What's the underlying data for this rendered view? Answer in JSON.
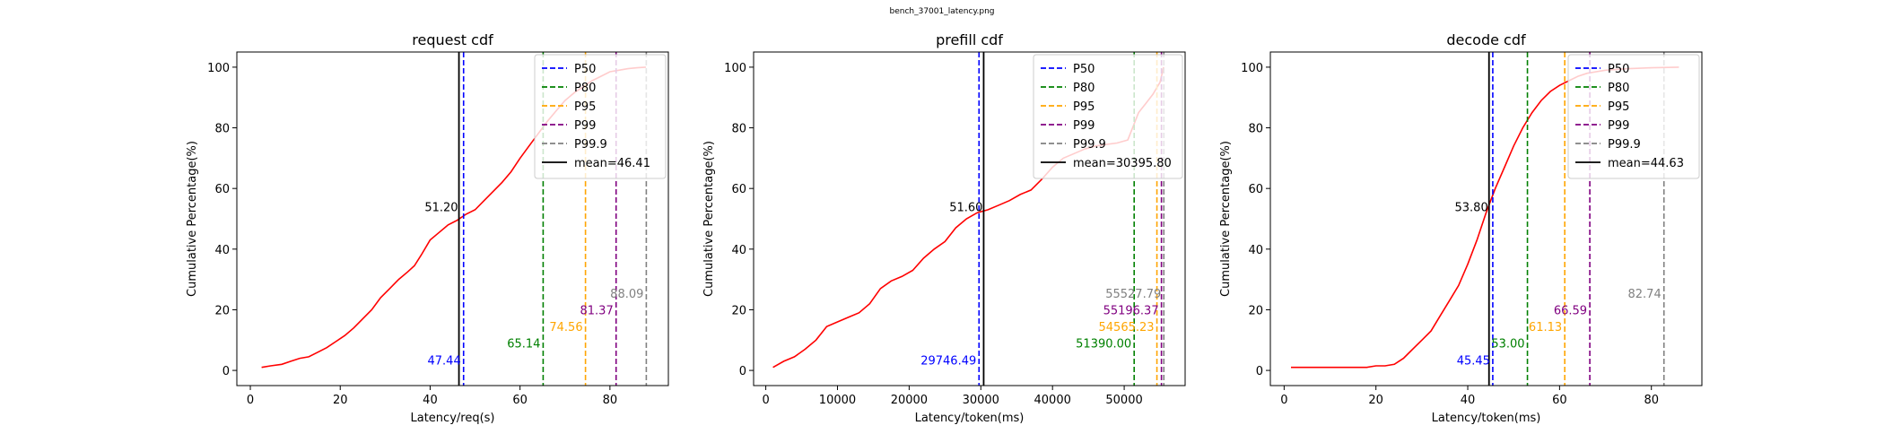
{
  "figure": {
    "suptitle": "bench_37001_latency.png"
  },
  "styles": {
    "cdf_color": "#ff0000",
    "mean_color": "#000000",
    "percentile_colors": {
      "P50": "#0000ff",
      "P80": "#008000",
      "P95": "#ffa500",
      "P99": "#800080",
      "P99.9": "#808080"
    }
  },
  "chart_data": [
    {
      "type": "line",
      "title": "request cdf",
      "xlabel": "Latency/req(s)",
      "ylabel": "Cumulative Percentage(%)",
      "xlim": [
        -3,
        93
      ],
      "ylim": [
        -5,
        105
      ],
      "xticks": [
        0,
        20,
        40,
        60,
        80
      ],
      "yticks": [
        0,
        20,
        40,
        60,
        80,
        100
      ],
      "x": [
        2.5,
        4.5,
        7,
        9,
        11,
        13,
        15,
        17,
        19,
        21,
        23,
        25,
        27,
        29,
        31,
        33,
        35,
        36.5,
        38,
        40,
        42,
        44,
        46,
        48,
        50,
        52,
        54,
        56,
        58,
        60,
        62,
        64,
        66,
        68,
        70,
        72,
        74,
        76,
        78,
        80,
        82,
        84,
        86,
        88
      ],
      "y": [
        1,
        1.5,
        2,
        3,
        4,
        4.5,
        6,
        7.5,
        9.5,
        11.5,
        14,
        17,
        20,
        24,
        27,
        30,
        32.5,
        34.5,
        38,
        43,
        45.5,
        48,
        49.5,
        51.5,
        53,
        56,
        59,
        62,
        65.5,
        70,
        74,
        78,
        82,
        85.5,
        89,
        91.5,
        93.5,
        95.5,
        97,
        98.5,
        99,
        99.5,
        99.8,
        100
      ],
      "mean": {
        "label": "mean=46.41",
        "value": 46.41
      },
      "mean_annotation": "51.20",
      "percentiles": [
        {
          "name": "P50",
          "value": 47.44,
          "label": "47.44"
        },
        {
          "name": "P80",
          "value": 65.14,
          "label": "65.14"
        },
        {
          "name": "P95",
          "value": 74.56,
          "label": "74.56"
        },
        {
          "name": "P99",
          "value": 81.37,
          "label": "81.37"
        },
        {
          "name": "P99.9",
          "value": 88.09,
          "label": "88.09"
        }
      ],
      "legend": [
        "P50",
        "P80",
        "P95",
        "P99",
        "P99.9",
        "mean=46.41"
      ],
      "legend_position": "top-right",
      "grid": false
    },
    {
      "type": "line",
      "title": "prefill cdf",
      "xlabel": "Latency/token(ms)",
      "ylabel": "Cumulative Percentage(%)",
      "xlim": [
        -1700,
        58500
      ],
      "ylim": [
        -5,
        105
      ],
      "xticks": [
        0,
        10000,
        20000,
        30000,
        40000,
        50000
      ],
      "yticks": [
        0,
        20,
        40,
        60,
        80,
        100
      ],
      "x": [
        1000,
        2500,
        4000,
        5500,
        7000,
        8500,
        10000,
        11500,
        13000,
        14500,
        16000,
        17500,
        19000,
        20500,
        22000,
        23500,
        25000,
        26500,
        28000,
        29500,
        31000,
        32500,
        34000,
        35500,
        37000,
        38500,
        40000,
        41500,
        43000,
        44500,
        46000,
        47500,
        49000,
        50500,
        52000,
        53000,
        54000,
        55000,
        55500
      ],
      "y": [
        1,
        3,
        4.5,
        7,
        10,
        14.5,
        16,
        17.5,
        19,
        22,
        27,
        29.5,
        31,
        33,
        37,
        40,
        42.5,
        47,
        50,
        52,
        53,
        54.5,
        56,
        58,
        59.5,
        63,
        67,
        70,
        71.5,
        73,
        74,
        74.5,
        75,
        76,
        85,
        88,
        91,
        95,
        100
      ],
      "mean": {
        "label": "mean=30395.80",
        "value": 30395.8
      },
      "mean_annotation": "51.60",
      "percentiles": [
        {
          "name": "P50",
          "value": 29746.49,
          "label": "29746.49"
        },
        {
          "name": "P80",
          "value": 51390.0,
          "label": "51390.00"
        },
        {
          "name": "P95",
          "value": 54565.23,
          "label": "54565.23"
        },
        {
          "name": "P99",
          "value": 55196.37,
          "label": "55196.37"
        },
        {
          "name": "P99.9",
          "value": 55527.79,
          "label": "55527.79"
        }
      ],
      "legend": [
        "P50",
        "P80",
        "P95",
        "P99",
        "P99.9",
        "mean=30395.80"
      ],
      "legend_position": "top-right",
      "grid": false
    },
    {
      "type": "line",
      "title": "decode cdf",
      "xlabel": "Latency/token(ms)",
      "ylabel": "Cumulative Percentage(%)",
      "xlim": [
        -3,
        91
      ],
      "ylim": [
        -5,
        105
      ],
      "xticks": [
        0,
        20,
        40,
        60,
        80
      ],
      "yticks": [
        0,
        20,
        40,
        60,
        80,
        100
      ],
      "x": [
        1.5,
        5,
        10,
        15,
        18,
        20,
        22,
        24,
        25,
        26,
        27,
        28,
        30,
        32,
        34,
        36,
        38,
        40,
        42,
        44,
        46,
        48,
        50,
        52,
        54,
        56,
        58,
        60,
        62,
        64,
        66,
        70,
        75,
        80,
        86
      ],
      "y": [
        1,
        1,
        1,
        1,
        1,
        1.5,
        1.5,
        2,
        3,
        4,
        5.5,
        7,
        10,
        13,
        18,
        23,
        28,
        35,
        43,
        52,
        60,
        67,
        74,
        80,
        85,
        89,
        92,
        94,
        95.5,
        97,
        98,
        99,
        99.5,
        99.8,
        100
      ],
      "mean": {
        "label": "mean=44.63",
        "value": 44.63
      },
      "mean_annotation": "53.80",
      "percentiles": [
        {
          "name": "P50",
          "value": 45.45,
          "label": "45.45"
        },
        {
          "name": "P80",
          "value": 53.0,
          "label": "53.00"
        },
        {
          "name": "P95",
          "value": 61.13,
          "label": "61.13"
        },
        {
          "name": "P99",
          "value": 66.59,
          "label": "66.59"
        },
        {
          "name": "P99.9",
          "value": 82.74,
          "label": "82.74"
        }
      ],
      "legend": [
        "P50",
        "P80",
        "P95",
        "P99",
        "P99.9",
        "mean=44.63"
      ],
      "legend_position": "top-right",
      "grid": false
    }
  ]
}
